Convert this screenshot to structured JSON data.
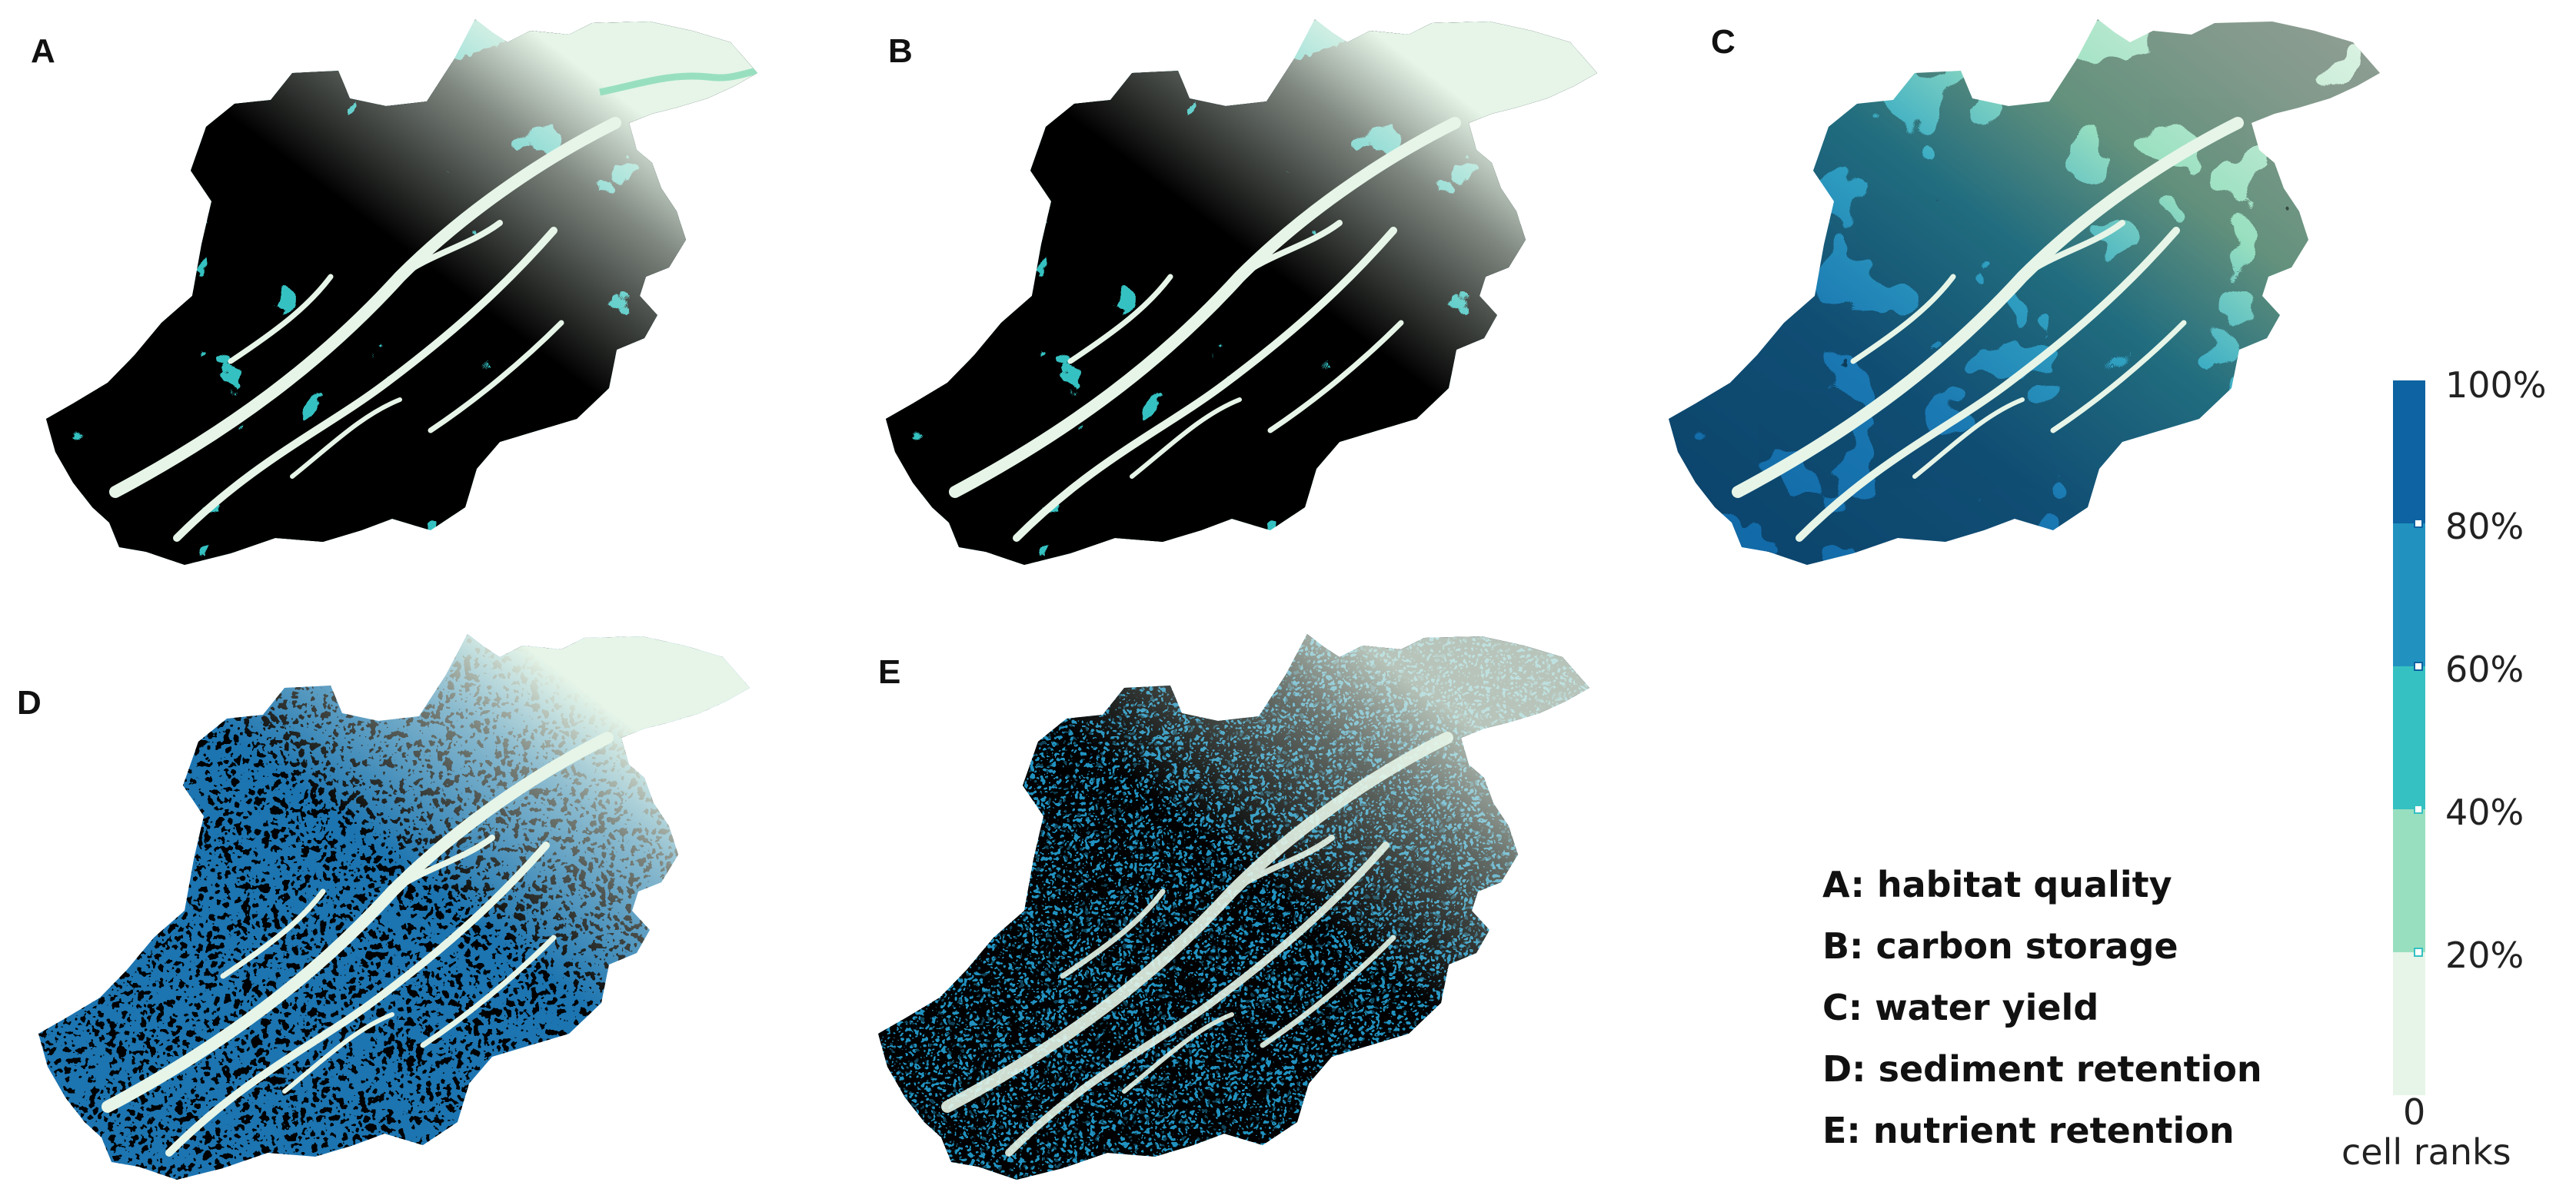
{
  "panels": [
    {
      "letter": "A",
      "caption": "A: habitat quality",
      "pattern": "patchy"
    },
    {
      "letter": "B",
      "caption": "B: carbon storage",
      "pattern": "patchy"
    },
    {
      "letter": "C",
      "caption": "C: water yield",
      "pattern": "gradient"
    },
    {
      "letter": "D",
      "caption": "D: sediment retention",
      "pattern": "fine"
    },
    {
      "letter": "E",
      "caption": "E: nutrient retention",
      "pattern": "finer"
    }
  ],
  "colorbar": {
    "title": "cell ranks",
    "ticks": [
      "100%",
      "80%",
      "60%",
      "40%",
      "20%",
      "0"
    ],
    "classes": [
      {
        "range": "80%-100%",
        "color": "#0e63a2"
      },
      {
        "range": "60%-80%",
        "color": "#2192c0"
      },
      {
        "range": "40%-60%",
        "color": "#35c1c1"
      },
      {
        "range": "20%-40%",
        "color": "#98dfc0"
      },
      {
        "range": "0-20%",
        "color": "#e6f5e8"
      }
    ]
  }
}
